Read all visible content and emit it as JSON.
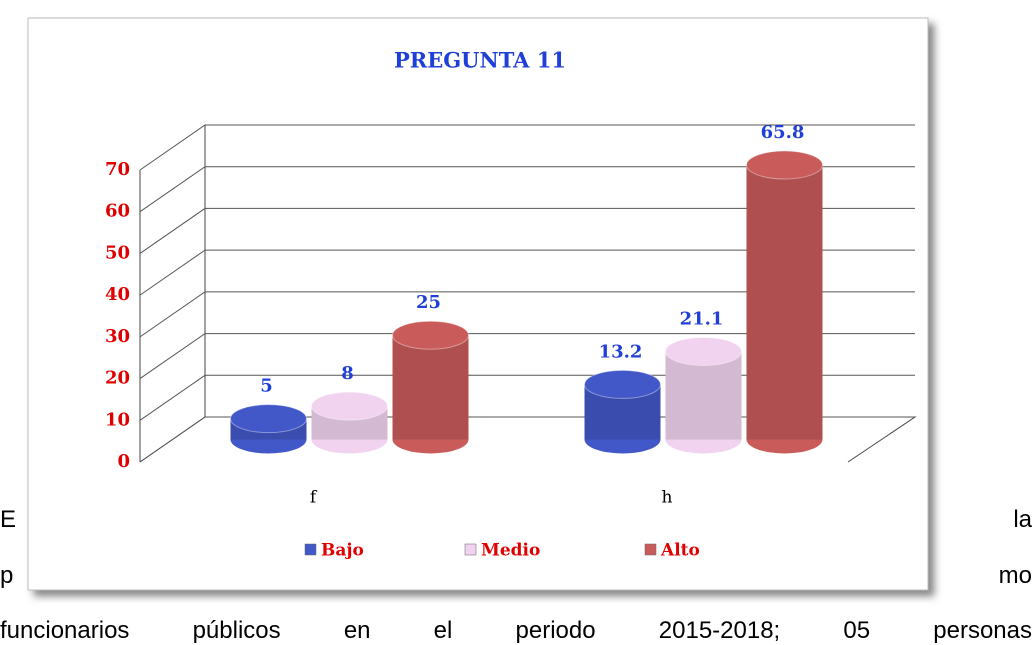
{
  "document": {
    "lines": [
      [
        "E",
        "la"
      ],
      [
        "p",
        "mo"
      ],
      [
        "funcionarios públicos en el periodo 2015-2018; 05 personas"
      ]
    ]
  },
  "chart_data": {
    "type": "bar3d",
    "title": "PREGUNTA 11",
    "categories": [
      "f",
      "h"
    ],
    "series": [
      {
        "name": "Bajo",
        "color": "#4358c8",
        "values": [
          5,
          13.2
        ]
      },
      {
        "name": "Medio",
        "color": "#f1d3ef",
        "values": [
          8,
          21.1
        ]
      },
      {
        "name": "Alto",
        "color": "#c95b5b",
        "values": [
          25,
          65.8
        ]
      }
    ],
    "ylim": [
      0,
      70
    ],
    "yticks": [
      0,
      10,
      20,
      30,
      40,
      50,
      60,
      70
    ],
    "grid": true,
    "legend": "bottom"
  }
}
